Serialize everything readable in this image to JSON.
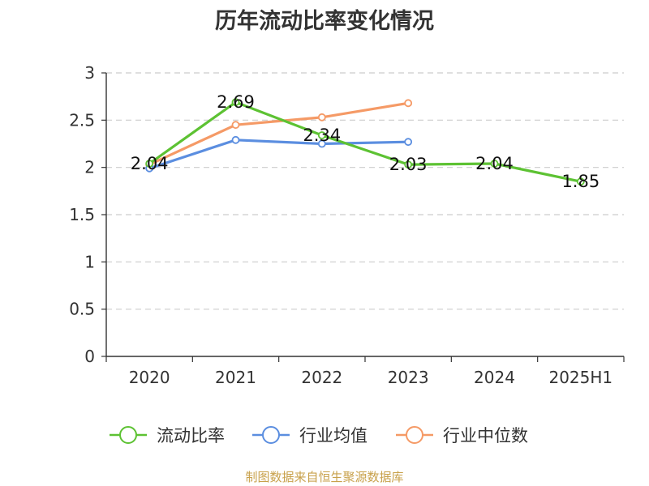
{
  "title": "历年流动比率变化情况",
  "source": "制图数据来自恒生聚源数据库",
  "chart_data": {
    "type": "line",
    "title": "历年流动比率变化情况",
    "categories": [
      "2020",
      "2021",
      "2022",
      "2023",
      "2024",
      "2025H1"
    ],
    "ylim": [
      0,
      3
    ],
    "yticks": [
      0,
      0.5,
      1,
      1.5,
      2,
      2.5,
      3
    ],
    "ytick_labels": [
      "0",
      "0.5",
      "1",
      "1.5",
      "2",
      "2.5",
      "3"
    ],
    "grid": true,
    "legend_position": "bottom",
    "series": [
      {
        "name": "流动比率",
        "color": "#5dc233",
        "values": [
          2.04,
          2.69,
          2.34,
          2.03,
          2.04,
          1.85
        ],
        "labels": [
          "2.04",
          "2.69",
          "2.34",
          "2.03",
          "2.04",
          "1.85"
        ]
      },
      {
        "name": "行业均值",
        "color": "#5b8ee0",
        "values": [
          1.99,
          2.29,
          2.25,
          2.27,
          null,
          null
        ]
      },
      {
        "name": "行业中位数",
        "color": "#f59a66",
        "values": [
          2.03,
          2.45,
          2.53,
          2.68,
          null,
          null
        ]
      }
    ]
  }
}
